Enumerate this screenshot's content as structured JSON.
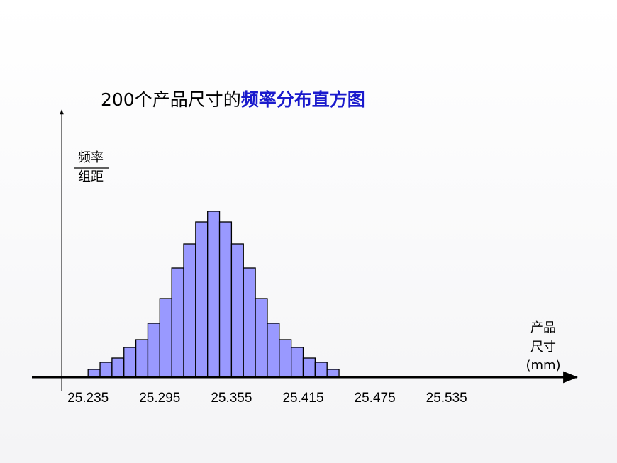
{
  "chart_data": {
    "type": "histogram",
    "title_plain": "200个产品尺寸的",
    "title_emphasis": "频率分布直方图",
    "y_label_top": "频率",
    "y_label_bottom": "组距",
    "x_label_lines": [
      "产品",
      "尺寸",
      "(mm)"
    ],
    "bins": [
      25.235,
      25.245,
      25.255,
      25.265,
      25.275,
      25.285,
      25.295,
      25.305,
      25.315,
      25.325,
      25.335,
      25.345,
      25.355,
      25.365,
      25.375,
      25.385,
      25.395,
      25.405,
      25.415,
      25.425,
      25.435,
      25.445
    ],
    "values": [
      11,
      21,
      27,
      42,
      53,
      76,
      111,
      154,
      188,
      219,
      234,
      219,
      188,
      154,
      111,
      76,
      53,
      42,
      27,
      21,
      11
    ],
    "color": "#9999ff",
    "xlim": [
      25.188,
      25.642
    ],
    "xticks": [
      25.235,
      25.295,
      25.355,
      25.415,
      25.475,
      25.535
    ],
    "ylim": [
      0,
      377
    ]
  }
}
